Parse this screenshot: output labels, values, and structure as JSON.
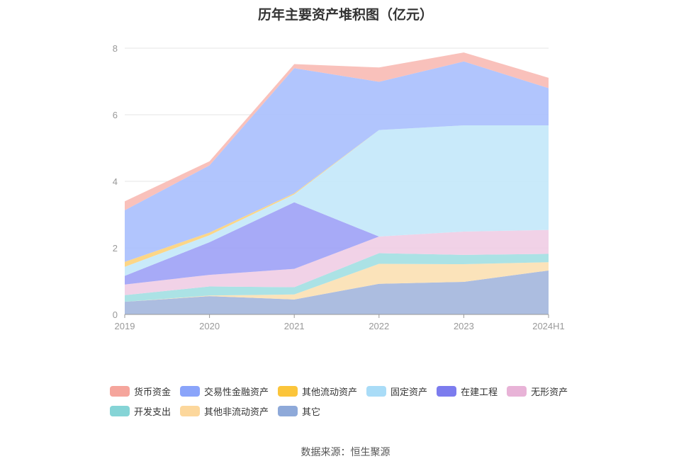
{
  "chart_data": {
    "type": "area",
    "stacked": true,
    "title": "历年主要资产堆积图（亿元）",
    "categories": [
      "2019",
      "2020",
      "2021",
      "2022",
      "2023",
      "2024H1"
    ],
    "ylim": [
      0,
      8
    ],
    "yticks": [
      0,
      2,
      4,
      6,
      8
    ],
    "grid": true,
    "legend_position": "bottom",
    "series": [
      {
        "name": "其它",
        "color": "#a3b6dd",
        "values": [
          0.38,
          0.55,
          0.45,
          0.92,
          0.98,
          1.32
        ]
      },
      {
        "name": "其他非流动资产",
        "color": "#fbe0b2",
        "values": [
          0.0,
          0.02,
          0.15,
          0.6,
          0.53,
          0.25
        ]
      },
      {
        "name": "开发支出",
        "color": "#a2dfe2",
        "values": [
          0.2,
          0.27,
          0.22,
          0.32,
          0.28,
          0.25
        ]
      },
      {
        "name": "无形资产",
        "color": "#efcde4",
        "values": [
          0.32,
          0.35,
          0.55,
          0.5,
          0.7,
          0.72
        ]
      },
      {
        "name": "在建工程",
        "color": "#9da1f6",
        "values": [
          0.26,
          0.98,
          2.0,
          0.0,
          0.0,
          0.0
        ]
      },
      {
        "name": "固定资产",
        "color": "#c3e8f9",
        "values": [
          0.27,
          0.21,
          0.24,
          3.2,
          3.19,
          3.14
        ]
      },
      {
        "name": "其他流动资产",
        "color": "#fcd27a",
        "values": [
          0.15,
          0.08,
          0.03,
          0.0,
          0.0,
          0.0
        ]
      },
      {
        "name": "交易性金融资产",
        "color": "#a8bffd",
        "values": [
          1.55,
          2.02,
          3.76,
          1.45,
          1.92,
          1.12
        ]
      },
      {
        "name": "货币资金",
        "color": "#f8bab4",
        "values": [
          0.27,
          0.12,
          0.12,
          0.43,
          0.27,
          0.31
        ]
      }
    ]
  },
  "legend": [
    {
      "label": "货币资金",
      "color": "#f5a59c"
    },
    {
      "label": "交易性金融资产",
      "color": "#8aa4fa"
    },
    {
      "label": "其他流动资产",
      "color": "#fbc53b"
    },
    {
      "label": "固定资产",
      "color": "#a9dcf7"
    },
    {
      "label": "在建工程",
      "color": "#7c7cee"
    },
    {
      "label": "无形资产",
      "color": "#e8b3d7"
    },
    {
      "label": "开发支出",
      "color": "#85d4d6"
    },
    {
      "label": "其他非流动资产",
      "color": "#fcd79c"
    },
    {
      "label": "其它",
      "color": "#8ea9d9"
    }
  ],
  "source": "数据来源：恒生聚源"
}
